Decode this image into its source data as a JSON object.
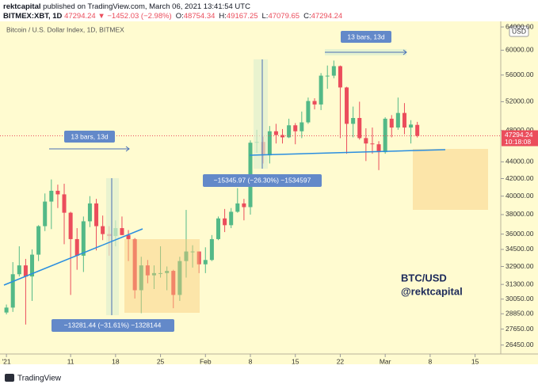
{
  "header": {
    "publisher": "rektcapital",
    "published_text": "published on TradingView.com, March 06, 2021 13:41:54 UTC",
    "symbol": "BITMEX:XBT, 1D",
    "last": "47294.24",
    "change": "▼ −1452.03 (−2.98%)",
    "ohlc": [
      {
        "label": "O:",
        "value": "48754.34"
      },
      {
        "label": "H:",
        "value": "49167.25"
      },
      {
        "label": "L:",
        "value": "47079.65"
      },
      {
        "label": "C:",
        "value": "47294.24"
      }
    ]
  },
  "chart_data": {
    "type": "candlestick",
    "title": "Bitcoin / U.S. Dollar Index, 1D, BITMEX",
    "currency": "USD",
    "countdown": "10:18:08",
    "up_color": "#53b987",
    "down_color": "#eb4d5c",
    "log_scale": true,
    "x": [
      "2021-01-01",
      "2021-01-02",
      "2021-01-03",
      "2021-01-04",
      "2021-01-05",
      "2021-01-06",
      "2021-01-07",
      "2021-01-08",
      "2021-01-09",
      "2021-01-10",
      "2021-01-11",
      "2021-01-12",
      "2021-01-13",
      "2021-01-14",
      "2021-01-15",
      "2021-01-16",
      "2021-01-17",
      "2021-01-18",
      "2021-01-19",
      "2021-01-20",
      "2021-01-21",
      "2021-01-22",
      "2021-01-23",
      "2021-01-24",
      "2021-01-25",
      "2021-01-26",
      "2021-01-27",
      "2021-01-28",
      "2021-01-29",
      "2021-01-30",
      "2021-01-31",
      "2021-02-01",
      "2021-02-02",
      "2021-02-03",
      "2021-02-04",
      "2021-02-05",
      "2021-02-06",
      "2021-02-07",
      "2021-02-08",
      "2021-02-09",
      "2021-02-10",
      "2021-02-11",
      "2021-02-12",
      "2021-02-13",
      "2021-02-14",
      "2021-02-15",
      "2021-02-16",
      "2021-02-17",
      "2021-02-18",
      "2021-02-19",
      "2021-02-20",
      "2021-02-21",
      "2021-02-22",
      "2021-02-23",
      "2021-02-24",
      "2021-02-25",
      "2021-02-26",
      "2021-02-27",
      "2021-02-28",
      "2021-03-01",
      "2021-03-02",
      "2021-03-03",
      "2021-03-04",
      "2021-03-05",
      "2021-03-06"
    ],
    "open": [
      28950,
      29350,
      32200,
      33000,
      32000,
      34000,
      36800,
      39400,
      40600,
      40200,
      38200,
      35500,
      33900,
      37300,
      39200,
      36800,
      36000,
      35800,
      36600,
      35900,
      35500,
      30800,
      33000,
      32100,
      32300,
      32300,
      32500,
      30400,
      33400,
      34300,
      34300,
      33100,
      33500,
      35500,
      37600,
      36900,
      38300,
      39200,
      38800,
      46400,
      46500,
      44800,
      47900,
      47400,
      47100,
      48700,
      47900,
      49100,
      52100,
      51600,
      55900,
      55900,
      57400,
      54100,
      48900,
      49700,
      47000,
      46300,
      46200,
      45200,
      49600,
      48400,
      50400,
      48400,
      48754.34
    ],
    "high": [
      29600,
      33300,
      34800,
      33600,
      34500,
      36900,
      40300,
      41900,
      41300,
      41400,
      38300,
      36600,
      37800,
      40000,
      39700,
      37900,
      36800,
      37400,
      37800,
      36400,
      35600,
      33800,
      33500,
      33000,
      34800,
      32900,
      32600,
      33800,
      38500,
      34900,
      34300,
      34700,
      35900,
      37800,
      38600,
      38700,
      40900,
      39700,
      46700,
      48100,
      47200,
      48600,
      48900,
      48200,
      49600,
      49000,
      50600,
      52600,
      52500,
      56300,
      57500,
      58300,
      57500,
      54200,
      51300,
      52000,
      48300,
      48400,
      46600,
      49800,
      50100,
      52600,
      51800,
      49400,
      49167.25
    ],
    "low": [
      28800,
      29000,
      32000,
      28000,
      29900,
      33400,
      36300,
      36500,
      38700,
      35000,
      30400,
      32600,
      32400,
      36700,
      34400,
      35400,
      33900,
      34800,
      35900,
      33400,
      30100,
      28900,
      31400,
      30900,
      31900,
      30800,
      29300,
      29900,
      31900,
      32800,
      32300,
      32300,
      33400,
      35400,
      36200,
      36600,
      38200,
      37400,
      38000,
      45100,
      43800,
      43800,
      46300,
      46300,
      47000,
      46200,
      47000,
      48900,
      50900,
      50800,
      53900,
      55500,
      47000,
      45000,
      47100,
      46800,
      44100,
      45000,
      43000,
      45000,
      47100,
      48100,
      47500,
      46300,
      47079.65
    ],
    "close": [
      29350,
      32200,
      33000,
      31990,
      34000,
      36800,
      39400,
      40600,
      40200,
      38200,
      35500,
      33900,
      37300,
      39200,
      36800,
      36000,
      35800,
      36600,
      35900,
      35500,
      30800,
      33000,
      32100,
      32300,
      32300,
      32500,
      30400,
      33400,
      34300,
      34300,
      33100,
      33500,
      35500,
      37600,
      36900,
      38300,
      39200,
      38800,
      46400,
      46500,
      44800,
      47900,
      47400,
      47100,
      48700,
      47900,
      49100,
      52100,
      51600,
      55900,
      55900,
      57400,
      54100,
      48900,
      49700,
      47000,
      46300,
      46200,
      45200,
      49600,
      48400,
      50400,
      48400,
      48800,
      47294.24
    ],
    "xlim": [
      "2020-12-31",
      "2021-03-19"
    ],
    "xticks": [
      {
        "value": "2021-01-01",
        "label": "'21"
      },
      {
        "value": "2021-01-11",
        "label": "11"
      },
      {
        "value": "2021-01-18",
        "label": "18"
      },
      {
        "value": "2021-01-25",
        "label": "25"
      },
      {
        "value": "2021-02-01",
        "label": "Feb"
      },
      {
        "value": "2021-02-08",
        "label": "8"
      },
      {
        "value": "2021-02-15",
        "label": "15"
      },
      {
        "value": "2021-02-22",
        "label": "22"
      },
      {
        "value": "2021-03-01",
        "label": "Mar"
      },
      {
        "value": "2021-03-08",
        "label": "8"
      },
      {
        "value": "2021-03-15",
        "label": "15"
      }
    ],
    "ylim": [
      25800,
      65000
    ],
    "yticks": [
      {
        "value": 64000,
        "label": "64000.00"
      },
      {
        "value": 60000,
        "label": "60000.00"
      },
      {
        "value": 56000,
        "label": "56000.00"
      },
      {
        "value": 52000,
        "label": "52000.00"
      },
      {
        "value": 48000,
        "label": "48000.00"
      },
      {
        "value": 44000,
        "label": "44000.00"
      },
      {
        "value": 42000,
        "label": "42000.00"
      },
      {
        "value": 40000,
        "label": "40000.00"
      },
      {
        "value": 38000,
        "label": "38000.00"
      },
      {
        "value": 36000,
        "label": "36000.00"
      },
      {
        "value": 34500,
        "label": "34500.00"
      },
      {
        "value": 32900,
        "label": "32900.00"
      },
      {
        "value": 31300,
        "label": "31300.00"
      },
      {
        "value": 30050,
        "label": "30050.00"
      },
      {
        "value": 28850,
        "label": "28850.00"
      },
      {
        "value": 27650,
        "label": "27650.00"
      },
      {
        "value": 26450,
        "label": "26450.00"
      }
    ],
    "annotations": {
      "range_top": "13 bars, 13d",
      "range_left": "13 bars, 13d",
      "measure_right": "−15345.97 (−26.30%) −1534597",
      "measure_left": "−13281.44 (−31.61%) −1328144",
      "watermark_pair": "BTC/USD",
      "watermark_author": "@rektcapital"
    }
  },
  "footer": {
    "brand": "TradingView"
  }
}
